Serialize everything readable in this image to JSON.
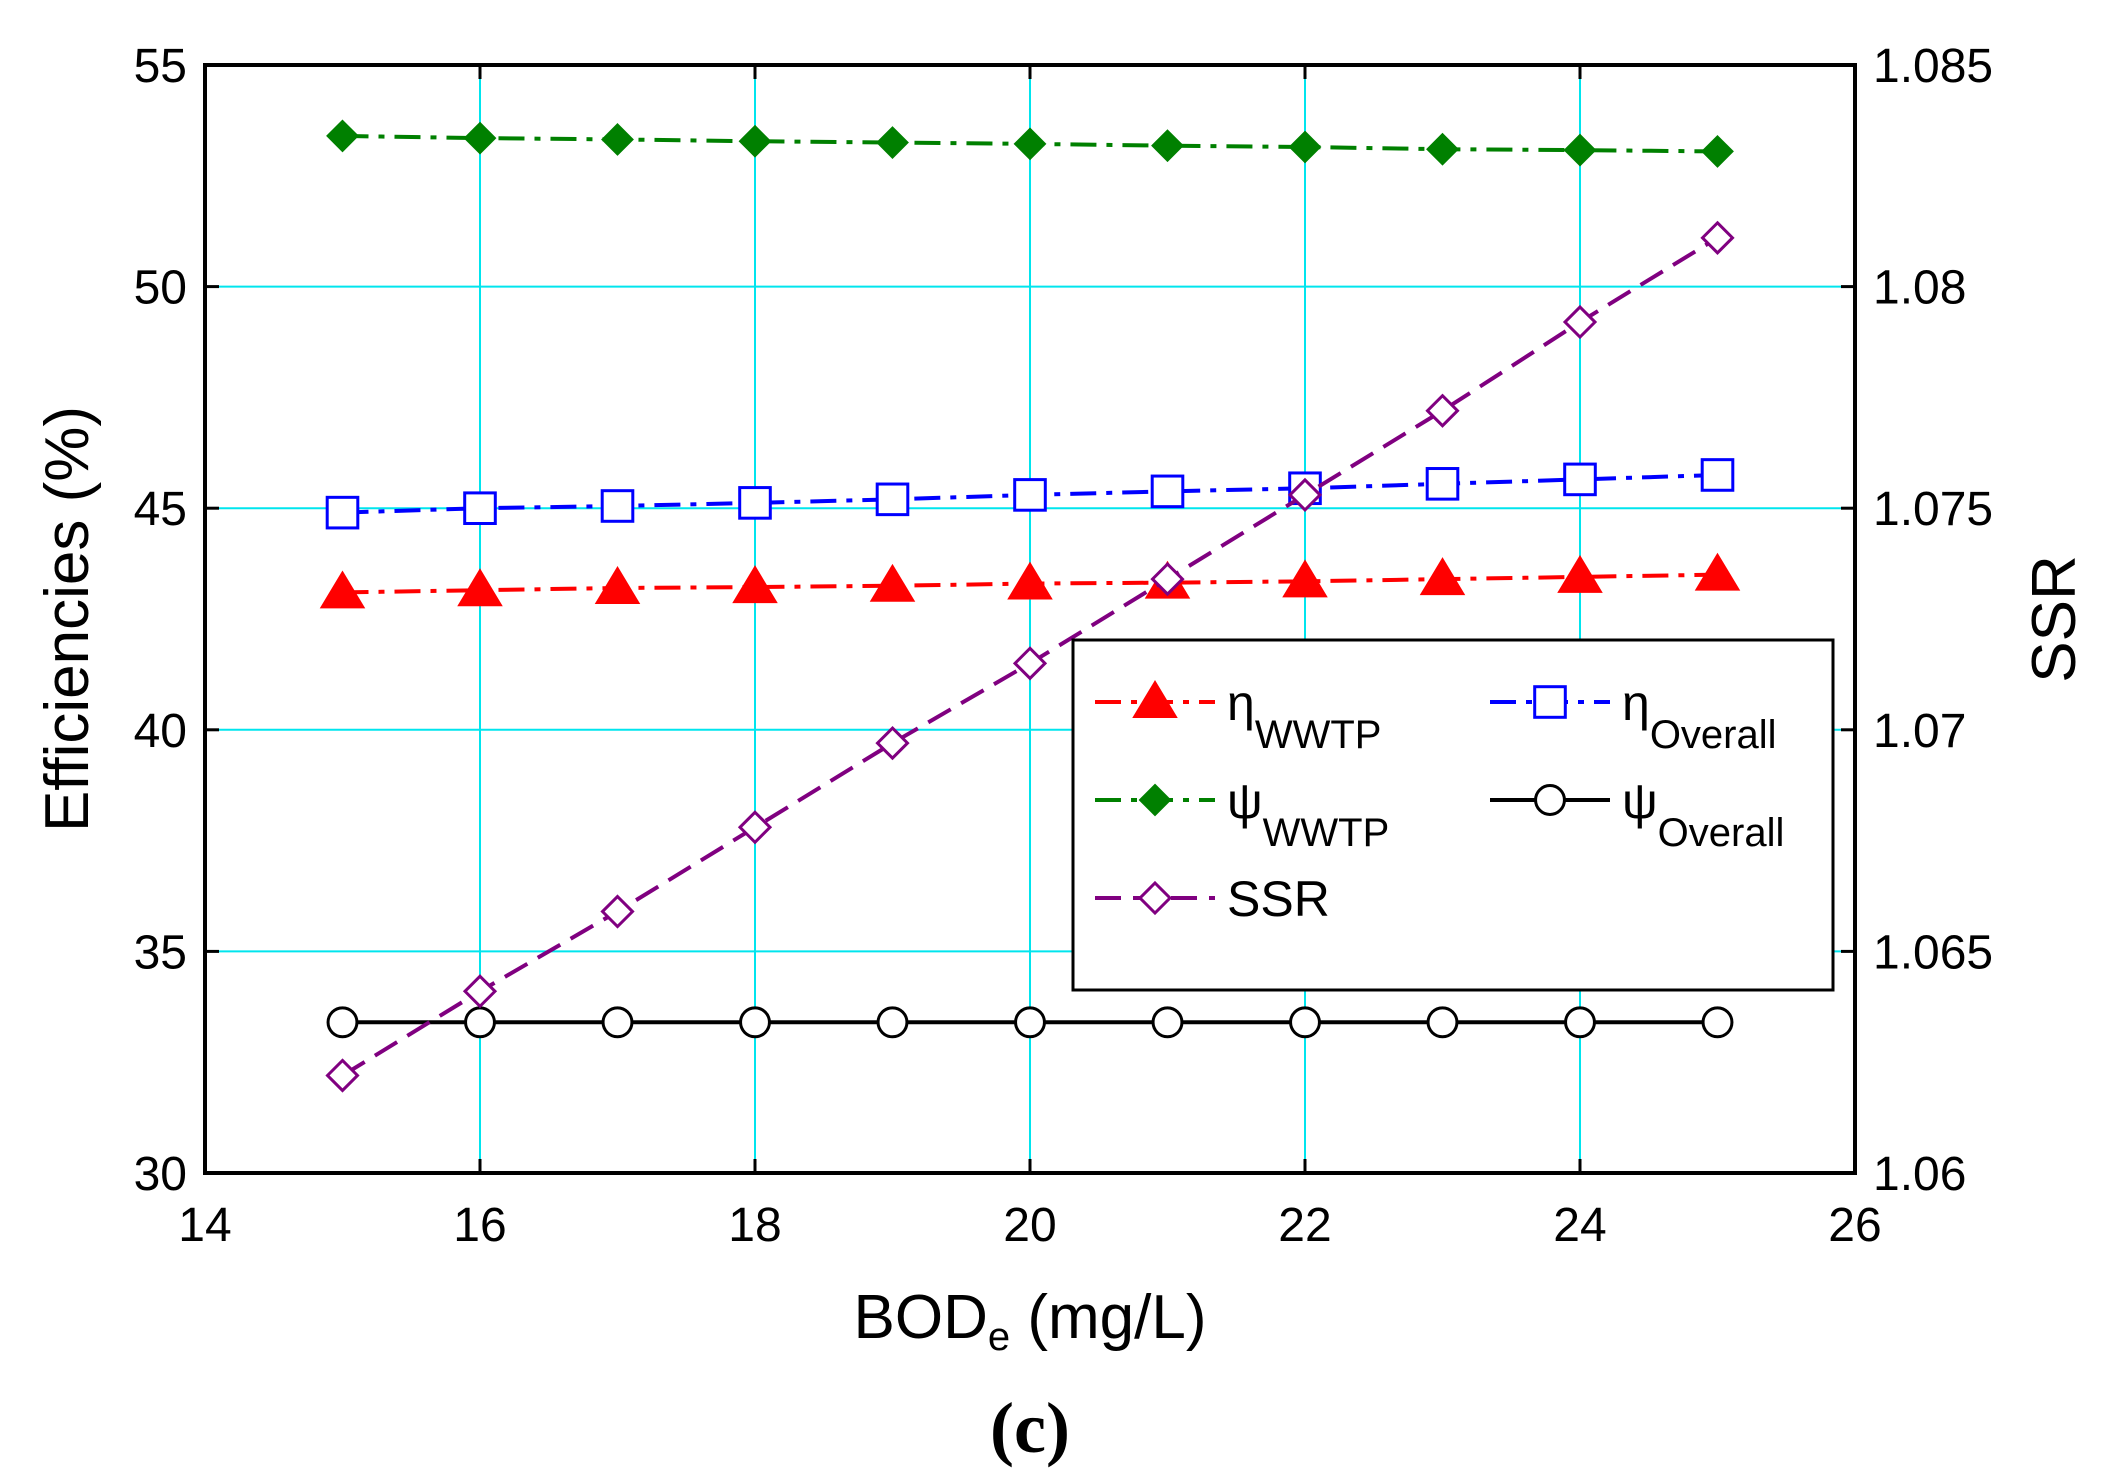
{
  "chart_data": {
    "type": "line",
    "panel_label": "(c)",
    "xlabel": "BOD",
    "xlabel_sub": "e",
    "xlabel_unit": " (mg/L)",
    "ylabel_left": "Efficiencies (%)",
    "ylabel_right": "SSR",
    "xlim": [
      14,
      26
    ],
    "ylim_left": [
      30,
      55
    ],
    "ylim_right": [
      1.06,
      1.085
    ],
    "x_ticks": [
      "14",
      "16",
      "18",
      "20",
      "22",
      "24",
      "26"
    ],
    "y_left_ticks": [
      "30",
      "35",
      "40",
      "45",
      "50",
      "55"
    ],
    "y_right_ticks": [
      "1.06",
      "1.065",
      "1.07",
      "1.075",
      "1.08",
      "1.085"
    ],
    "grid": true,
    "grid_color": "#00e5ee",
    "legend_position": "lower-right",
    "x": [
      15,
      16,
      17,
      18,
      19,
      20,
      21,
      22,
      23,
      24,
      25
    ],
    "series": [
      {
        "name": "η",
        "name_sub": "WWTP",
        "axis": "left",
        "color": "#ff0000",
        "marker": "triangle-filled",
        "dash": "dash-dot",
        "values": [
          43.1,
          43.15,
          43.2,
          43.22,
          43.25,
          43.3,
          43.32,
          43.35,
          43.4,
          43.45,
          43.5
        ]
      },
      {
        "name": "η",
        "name_sub": "Overall",
        "axis": "left",
        "color": "#0000ff",
        "marker": "square-open",
        "dash": "dash-dot",
        "values": [
          44.9,
          45.0,
          45.05,
          45.12,
          45.2,
          45.3,
          45.38,
          45.45,
          45.55,
          45.65,
          45.75
        ]
      },
      {
        "name": "ψ",
        "name_sub": "WWTP",
        "axis": "left",
        "color": "#008000",
        "marker": "diamond-filled",
        "dash": "dash-dot",
        "values": [
          53.4,
          53.35,
          53.32,
          53.28,
          53.25,
          53.22,
          53.18,
          53.15,
          53.1,
          53.08,
          53.05
        ]
      },
      {
        "name": "ψ",
        "name_sub": "Overall",
        "axis": "left",
        "color": "#000000",
        "marker": "circle-open",
        "dash": "solid",
        "values": [
          33.4,
          33.4,
          33.4,
          33.4,
          33.4,
          33.4,
          33.4,
          33.4,
          33.4,
          33.4,
          33.4
        ]
      },
      {
        "name": "SSR",
        "name_sub": "",
        "axis": "right",
        "color": "#800080",
        "marker": "diamond-open",
        "dash": "dashed",
        "values": [
          1.0622,
          1.0641,
          1.0659,
          1.0678,
          1.0697,
          1.0715,
          1.0734,
          1.0753,
          1.0772,
          1.0792,
          1.0811
        ]
      }
    ]
  }
}
